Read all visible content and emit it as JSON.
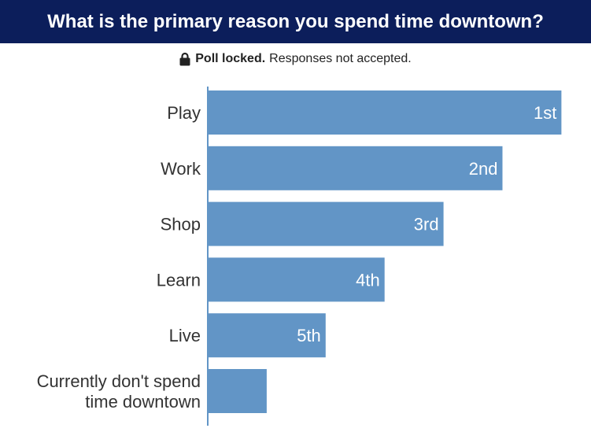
{
  "header": {
    "title": "What is the primary reason you spend time downtown?"
  },
  "status": {
    "icon": "lock-icon",
    "bold_text": "Poll locked.",
    "text": "Responses not accepted."
  },
  "colors": {
    "header_bg": "#0c1e5b",
    "bar": "#6295c6",
    "axis": "#6295c6"
  },
  "chart_data": {
    "type": "bar",
    "orientation": "horizontal",
    "title": "What is the primary reason you spend time downtown?",
    "categories": [
      "Play",
      "Work",
      "Shop",
      "Learn",
      "Live",
      "Currently don't spend time downtown"
    ],
    "category_lines": [
      [
        "Play"
      ],
      [
        "Work"
      ],
      [
        "Shop"
      ],
      [
        "Learn"
      ],
      [
        "Live"
      ],
      [
        "Currently don't spend",
        "time downtown"
      ]
    ],
    "rank_labels": [
      "1st",
      "2nd",
      "3rd",
      "4th",
      "5th",
      ""
    ],
    "values": [
      6,
      5,
      4,
      3,
      2,
      1
    ],
    "xlim": [
      0,
      6
    ],
    "grid": false,
    "legend": "none"
  }
}
